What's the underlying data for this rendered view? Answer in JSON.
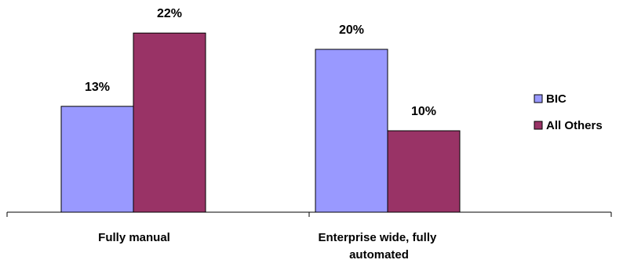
{
  "chart_data": {
    "type": "bar",
    "title": "",
    "xlabel": "",
    "ylabel": "",
    "categories": [
      "Fully manual",
      "Enterprise wide, fully automated"
    ],
    "series": [
      {
        "name": "BIC",
        "values": [
          13,
          20
        ],
        "labels": [
          "13%",
          "20%"
        ],
        "color": "#9999FF"
      },
      {
        "name": "All Others",
        "values": [
          22,
          10
        ],
        "labels": [
          "22%",
          "10%"
        ],
        "color": "#993366"
      }
    ],
    "ylim": [
      0,
      25
    ],
    "grid": false,
    "legend_position": "right"
  }
}
